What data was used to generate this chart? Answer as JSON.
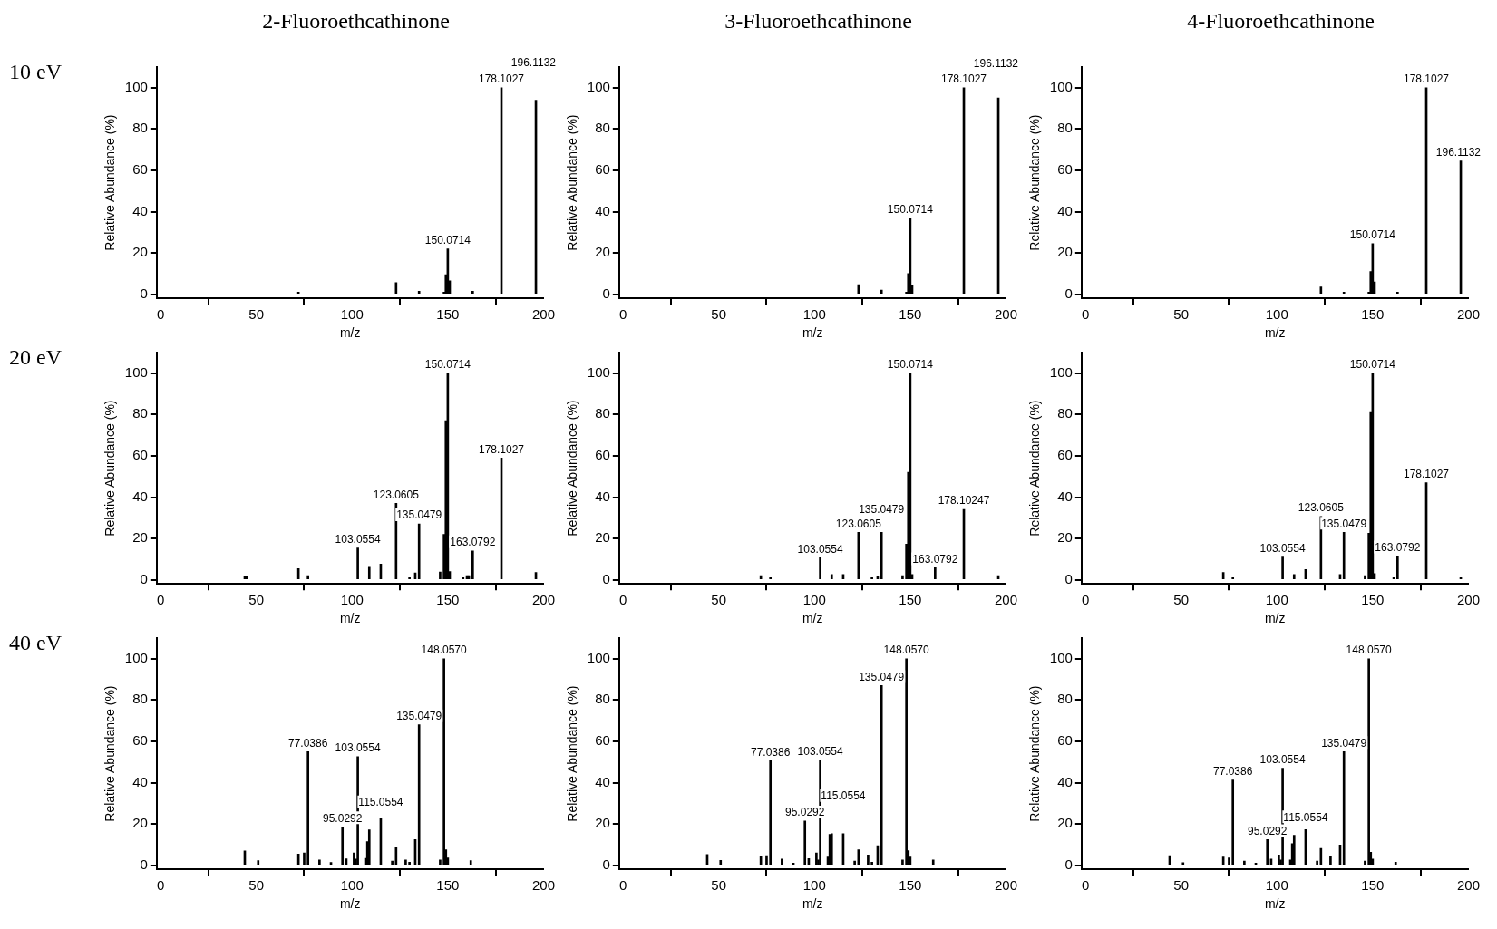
{
  "chart_data": [
    {
      "type": "bar",
      "title": "2-Fluoroethcathinone",
      "subtitle": "10 eV",
      "xlabel": "m/z",
      "ylabel": "Relative Abundance (%)",
      "color": "#000000",
      "xlim": [
        -2,
        200
      ],
      "ylim": [
        -2,
        110
      ],
      "xticks": [
        0,
        50,
        100,
        150,
        200
      ],
      "yticks": [
        0,
        20,
        40,
        60,
        80,
        100
      ],
      "x": [
        72,
        123,
        135,
        148,
        149,
        150,
        151,
        163,
        178,
        196
      ],
      "values": [
        1,
        5.6,
        1.5,
        1,
        9.5,
        22,
        6.5,
        1.5,
        100,
        94
      ],
      "annotations": [
        {
          "text": "150.0714",
          "x": 150,
          "y": 22
        },
        {
          "text": "178.1027",
          "x": 178,
          "y": 100
        },
        {
          "text": "196.1132",
          "x": 196,
          "y": 94
        }
      ]
    },
    {
      "type": "bar",
      "title": "3-Fluoroethcathinone",
      "xlabel": "m/z",
      "ylabel": "Relative Abundance (%)",
      "color": "#000000",
      "xlim": [
        -2,
        200
      ],
      "ylim": [
        -2,
        110
      ],
      "xticks": [
        0,
        50,
        100,
        150,
        200
      ],
      "yticks": [
        0,
        20,
        40,
        60,
        80,
        100
      ],
      "x": [
        123,
        135,
        148,
        149,
        150,
        151,
        178,
        196
      ],
      "values": [
        4.6,
        2,
        1,
        10,
        37,
        4.5,
        100,
        95
      ],
      "annotations": [
        {
          "text": "150.0714",
          "x": 150,
          "y": 37
        },
        {
          "text": "178.1027",
          "x": 178,
          "y": 100
        },
        {
          "text": "196.1132",
          "x": 196,
          "y": 95
        }
      ]
    },
    {
      "type": "bar",
      "title": "4-Fluoroethcathinone",
      "xlabel": "m/z",
      "ylabel": "Relative Abundance (%)",
      "color": "#000000",
      "xlim": [
        -2,
        200
      ],
      "ylim": [
        -2,
        110
      ],
      "xticks": [
        0,
        50,
        100,
        150,
        200
      ],
      "yticks": [
        0,
        20,
        40,
        60,
        80,
        100
      ],
      "x": [
        123,
        135,
        148,
        149,
        150,
        151,
        163,
        178,
        196
      ],
      "values": [
        3.5,
        1,
        1,
        11,
        24.5,
        6,
        1,
        100,
        64.5
      ],
      "annotations": [
        {
          "text": "150.0714",
          "x": 150,
          "y": 24.5
        },
        {
          "text": "178.1027",
          "x": 178,
          "y": 100
        },
        {
          "text": "196.1132",
          "x": 196,
          "y": 64.5
        }
      ]
    },
    {
      "type": "bar",
      "subtitle": "20 eV",
      "xlabel": "m/z",
      "ylabel": "Relative Abundance (%)",
      "color": "#000000",
      "xlim": [
        -2,
        200
      ],
      "ylim": [
        -2,
        110
      ],
      "xticks": [
        0,
        50,
        100,
        150,
        200
      ],
      "yticks": [
        0,
        20,
        40,
        60,
        80,
        100
      ],
      "x": [
        44,
        45,
        72,
        77,
        103,
        109,
        115,
        123,
        130,
        133,
        135,
        146,
        148,
        149,
        150,
        151,
        158,
        160,
        161,
        163,
        178,
        196
      ],
      "values": [
        1.5,
        1.5,
        5.4,
        2,
        15.4,
        6.1,
        7.6,
        37,
        1,
        3.3,
        27,
        3.8,
        22,
        77,
        100,
        4,
        1,
        2,
        2,
        14,
        59,
        3.5
      ],
      "annotations": [
        {
          "text": "103.0554",
          "x": 103,
          "y": 15.4
        },
        {
          "text": "123.0605",
          "x": 123,
          "y": 37
        },
        {
          "text": "135.0479",
          "x": 135,
          "y": 27
        },
        {
          "text": "150.0714",
          "x": 150,
          "y": 100
        },
        {
          "text": "163.0792",
          "x": 163,
          "y": 14
        },
        {
          "text": "178.1027",
          "x": 178,
          "y": 59
        }
      ]
    },
    {
      "type": "bar",
      "xlabel": "m/z",
      "ylabel": "Relative Abundance (%)",
      "color": "#000000",
      "xlim": [
        -2,
        200
      ],
      "ylim": [
        -2,
        110
      ],
      "xticks": [
        0,
        50,
        100,
        150,
        200
      ],
      "yticks": [
        0,
        20,
        40,
        60,
        80,
        100
      ],
      "x": [
        72,
        77,
        103,
        109,
        115,
        123,
        130,
        133,
        135,
        146,
        148,
        149,
        150,
        151,
        163,
        178,
        196
      ],
      "values": [
        2,
        1,
        10.7,
        2.5,
        2.5,
        23,
        1,
        1.5,
        23,
        2,
        17.3,
        52,
        100,
        2.5,
        5.8,
        34,
        2
      ],
      "annotations": [
        {
          "text": "103.0554",
          "x": 103,
          "y": 10.7
        },
        {
          "text": "123.0605",
          "x": 123,
          "y": 23
        },
        {
          "text": "135.0479",
          "x": 135,
          "y": 23
        },
        {
          "text": "150.0714",
          "x": 150,
          "y": 100
        },
        {
          "text": "163.0792",
          "x": 163,
          "y": 5.8
        },
        {
          "text": "178.10247",
          "x": 178,
          "y": 34
        }
      ]
    },
    {
      "type": "bar",
      "xlabel": "m/z",
      "ylabel": "Relative Abundance (%)",
      "color": "#000000",
      "xlim": [
        -2,
        200
      ],
      "ylim": [
        -2,
        110
      ],
      "xticks": [
        0,
        50,
        100,
        150,
        200
      ],
      "yticks": [
        0,
        20,
        40,
        60,
        80,
        100
      ],
      "x": [
        72,
        77,
        103,
        109,
        115,
        123,
        133,
        135,
        146,
        148,
        149,
        150,
        151,
        161,
        163,
        178,
        196
      ],
      "values": [
        3.5,
        1,
        11,
        2.5,
        5,
        30.6,
        2.5,
        23,
        2,
        22.5,
        81,
        100,
        3,
        1,
        11.5,
        47,
        1
      ],
      "annotations": [
        {
          "text": "103.0554",
          "x": 103,
          "y": 11
        },
        {
          "text": "123.0605",
          "x": 123,
          "y": 30.6
        },
        {
          "text": "135.0479",
          "x": 135,
          "y": 23
        },
        {
          "text": "150.0714",
          "x": 150,
          "y": 100
        },
        {
          "text": "163.0792",
          "x": 163,
          "y": 11.5
        },
        {
          "text": "178.1027",
          "x": 178,
          "y": 47
        }
      ]
    },
    {
      "type": "bar",
      "subtitle": "40 eV",
      "xlabel": "m/z",
      "ylabel": "Relative Abundance (%)",
      "color": "#000000",
      "xlim": [
        -2,
        200
      ],
      "ylim": [
        -2,
        110
      ],
      "xticks": [
        0,
        50,
        100,
        150,
        200
      ],
      "yticks": [
        0,
        20,
        40,
        60,
        80,
        100
      ],
      "x": [
        44,
        51,
        72,
        75,
        77,
        83,
        89,
        95,
        97,
        101,
        102,
        103,
        107,
        108,
        109,
        115,
        121,
        123,
        128,
        130,
        133,
        135,
        146,
        148,
        149,
        150,
        162
      ],
      "values": [
        6.9,
        2.2,
        5.4,
        5.9,
        55,
        2.6,
        1.3,
        18.6,
        3.1,
        6,
        3,
        52.6,
        3.3,
        11.4,
        17.1,
        22.8,
        2,
        8.5,
        2.6,
        1.5,
        12.4,
        68,
        2.6,
        100,
        7.5,
        3.5,
        2.2
      ],
      "annotations": [
        {
          "text": "77.0386",
          "x": 77,
          "y": 55
        },
        {
          "text": "95.0292",
          "x": 95,
          "y": 18.6
        },
        {
          "text": "103.0554",
          "x": 103,
          "y": 52.6
        },
        {
          "text": "115.0554",
          "x": 115,
          "y": 22.8
        },
        {
          "text": "135.0479",
          "x": 135,
          "y": 68
        },
        {
          "text": "148.0570",
          "x": 148,
          "y": 100
        }
      ]
    },
    {
      "type": "bar",
      "xlabel": "m/z",
      "ylabel": "Relative Abundance (%)",
      "color": "#000000",
      "xlim": [
        -2,
        200
      ],
      "ylim": [
        -2,
        110
      ],
      "xticks": [
        0,
        50,
        100,
        150,
        200
      ],
      "yticks": [
        0,
        20,
        40,
        60,
        80,
        100
      ],
      "x": [
        44,
        51,
        72,
        75,
        77,
        83,
        89,
        95,
        97,
        101,
        102,
        103,
        107,
        108,
        109,
        115,
        121,
        123,
        128,
        130,
        133,
        135,
        146,
        148,
        149,
        150,
        162
      ],
      "values": [
        5.2,
        2.3,
        4.3,
        4.6,
        50.6,
        3,
        1,
        21.4,
        3.2,
        6,
        2.5,
        51,
        4,
        15,
        15.3,
        15.3,
        2,
        7.5,
        5,
        1.5,
        9.5,
        87,
        2.6,
        100,
        7,
        4,
        2.5
      ],
      "annotations": [
        {
          "text": "77.0386",
          "x": 77,
          "y": 50.6
        },
        {
          "text": "95.0292",
          "x": 95,
          "y": 21.4
        },
        {
          "text": "103.0554",
          "x": 103,
          "y": 51
        },
        {
          "text": "115.0554",
          "x": 115,
          "y": 15.3
        },
        {
          "text": "135.0479",
          "x": 135,
          "y": 87
        },
        {
          "text": "148.0570",
          "x": 148,
          "y": 100
        }
      ]
    },
    {
      "type": "bar",
      "xlabel": "m/z",
      "ylabel": "Relative Abundance (%)",
      "color": "#000000",
      "xlim": [
        -2,
        200
      ],
      "ylim": [
        -2,
        110
      ],
      "xticks": [
        0,
        50,
        100,
        150,
        200
      ],
      "yticks": [
        0,
        20,
        40,
        60,
        80,
        100
      ],
      "x": [
        44,
        51,
        72,
        75,
        77,
        83,
        89,
        95,
        97,
        101,
        102,
        103,
        107,
        108,
        109,
        115,
        121,
        123,
        128,
        133,
        135,
        146,
        148,
        149,
        150,
        162
      ],
      "values": [
        4.6,
        1.2,
        4,
        3.5,
        41.3,
        2,
        1,
        12.4,
        3,
        5,
        2.5,
        47,
        2.5,
        10.4,
        14.5,
        17.3,
        2,
        8.1,
        4.3,
        9.8,
        55,
        2,
        100,
        6.3,
        3,
        1.5
      ],
      "annotations": [
        {
          "text": "77.0386",
          "x": 77,
          "y": 41.3
        },
        {
          "text": "95.0292",
          "x": 95,
          "y": 12.4
        },
        {
          "text": "103.0554",
          "x": 103,
          "y": 47
        },
        {
          "text": "115.0554",
          "x": 115,
          "y": 17.3
        },
        {
          "text": "135.0479",
          "x": 135,
          "y": 55
        },
        {
          "text": "148.0570",
          "x": 148,
          "y": 100
        }
      ]
    }
  ]
}
